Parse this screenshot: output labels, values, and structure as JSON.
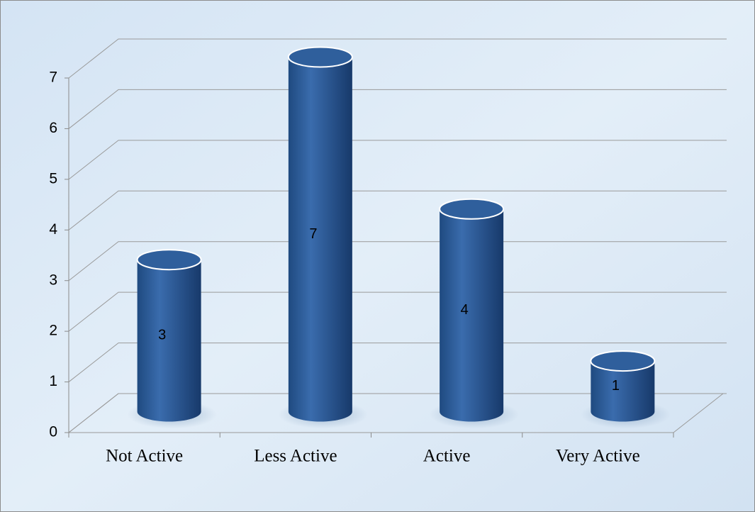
{
  "chart_data": {
    "type": "bar3d",
    "categories": [
      "Not Active",
      "Less Active",
      "Active",
      "Very Active"
    ],
    "values": [
      3,
      7,
      4,
      1
    ],
    "color": "#2e5f9e",
    "ylim": [
      0,
      7
    ],
    "yticks": [
      0,
      1,
      2,
      3,
      4,
      5,
      6,
      7
    ],
    "grid": true
  }
}
